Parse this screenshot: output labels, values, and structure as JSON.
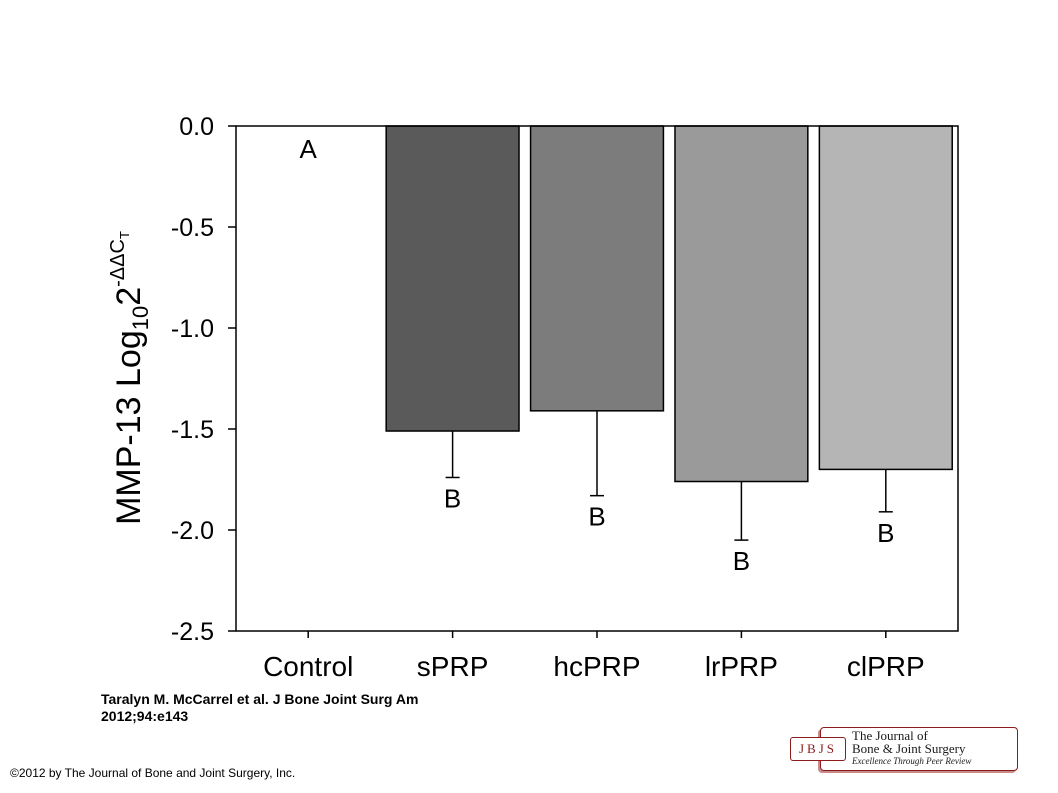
{
  "chart_data": {
    "type": "bar",
    "ylabel_base": "MMP-13 Log",
    "ylabel_subscript": "10",
    "ylabel_power": "2",
    "ylabel_exponent": "-ΔΔC",
    "ylabel_exponent_subscript": "T",
    "ylim": [
      -2.5,
      0.0
    ],
    "yticks": [
      "0.0",
      "-0.5",
      "-1.0",
      "-1.5",
      "-2.0",
      "-2.5"
    ],
    "ytick_values": [
      0.0,
      -0.5,
      -1.0,
      -1.5,
      -2.0,
      -2.5
    ],
    "categories": [
      "Control",
      "sPRP",
      "hcPRP",
      "lrPRP",
      "clPRP"
    ],
    "values": [
      0.0,
      -1.51,
      -1.41,
      -1.76,
      -1.7
    ],
    "error_low": [
      null,
      -1.74,
      -1.83,
      -2.05,
      -1.91
    ],
    "significance_labels": [
      "A",
      "B",
      "B",
      "B",
      "B"
    ],
    "bar_colors": [
      null,
      "#5a5a5a",
      "#7c7c7c",
      "#9a9a9a",
      "#b5b5b5"
    ],
    "grid": false
  },
  "citation": "Taralyn M. McCarrel et al. J Bone Joint Surg Am 2012;94:e143",
  "copyright": "©2012 by The Journal of Bone and Joint Surgery, Inc.",
  "logo": {
    "mark": "JBJS",
    "line1": "The Journal of",
    "line2": "Bone & Joint Surgery",
    "line3": "Excellence Through Peer Review",
    "color": "#8b1c1c"
  }
}
